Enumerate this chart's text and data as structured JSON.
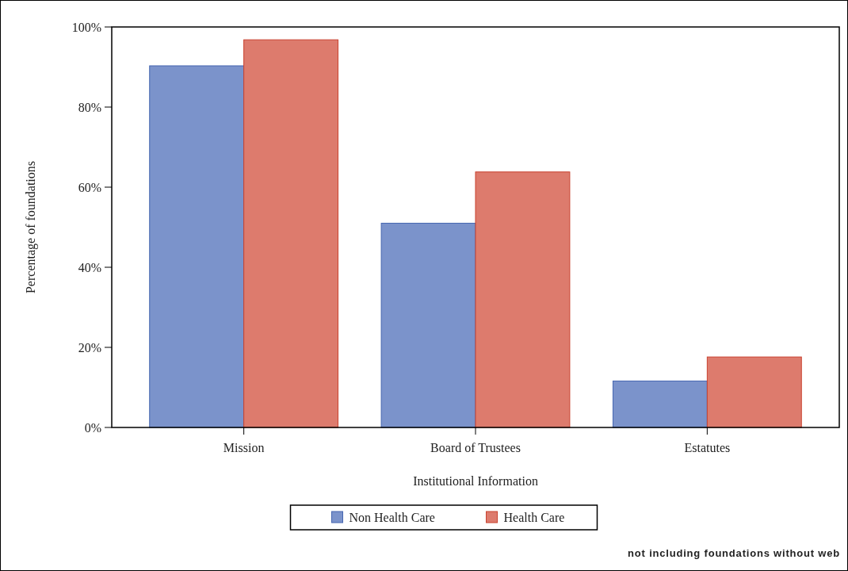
{
  "chart_data": {
    "type": "bar",
    "xlabel": "Institutional Information",
    "ylabel": "Percentage of foundations",
    "categories": [
      "Mission",
      "Board of Trustees",
      "Estatutes"
    ],
    "series": [
      {
        "name": "Non Health Care",
        "color": "#7b93cb",
        "values": [
          90.3,
          51,
          11.6
        ]
      },
      {
        "name": "Health Care",
        "color": "#dd7b6d",
        "values": [
          96.8,
          63.8,
          17.6
        ]
      }
    ],
    "ylim": [
      0,
      100
    ],
    "yticks": [
      {
        "value": 0,
        "label": "0%"
      },
      {
        "value": 20,
        "label": "20%"
      },
      {
        "value": 40,
        "label": "40%"
      },
      {
        "value": 60,
        "label": "60%"
      },
      {
        "value": 80,
        "label": "80%"
      },
      {
        "value": 100,
        "label": "100%"
      }
    ],
    "legend": "bottom",
    "grid": false,
    "annotations": [
      "not including foundations without web"
    ]
  }
}
